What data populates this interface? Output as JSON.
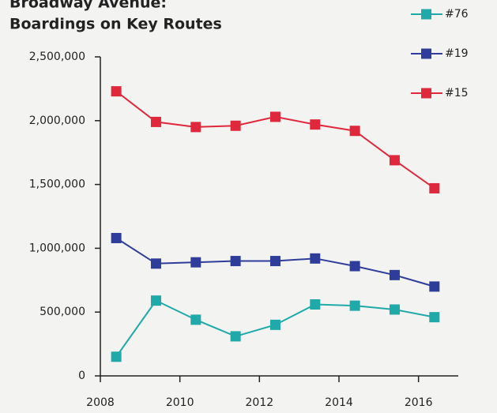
{
  "chart_data": {
    "type": "line",
    "title": [
      "Broadway Avenue:",
      "Boardings on Key Routes"
    ],
    "x": [
      2008.4,
      2009.4,
      2010.4,
      2011.4,
      2012.4,
      2013.4,
      2014.4,
      2015.4,
      2016.4
    ],
    "xlim": [
      2008,
      2017
    ],
    "xticks": [
      2008,
      2010,
      2012,
      2014,
      2016
    ],
    "ylim": [
      0,
      2500000
    ],
    "yticks": [
      0,
      {
        "value": 500000,
        "label": "500,000"
      },
      {
        "value": 1000000,
        "label": "1,000,000"
      },
      {
        "value": 1500000,
        "label": "1,500,000"
      },
      {
        "value": 2000000,
        "label": "2,000,000"
      },
      {
        "value": 2500000,
        "label": "2,500,000"
      }
    ],
    "legend": "top-right",
    "series": [
      {
        "name": "#76",
        "color": "#1fa9a9",
        "values": [
          150000,
          590000,
          440000,
          310000,
          400000,
          560000,
          550000,
          520000,
          460000
        ]
      },
      {
        "name": "#19",
        "color": "#2e3d9a",
        "values": [
          1080000,
          880000,
          890000,
          900000,
          900000,
          920000,
          860000,
          790000,
          700000
        ]
      },
      {
        "name": "#15",
        "color": "#e0283c",
        "values": [
          2230000,
          1990000,
          1950000,
          1960000,
          2030000,
          1970000,
          1920000,
          1690000,
          1470000
        ]
      }
    ]
  }
}
